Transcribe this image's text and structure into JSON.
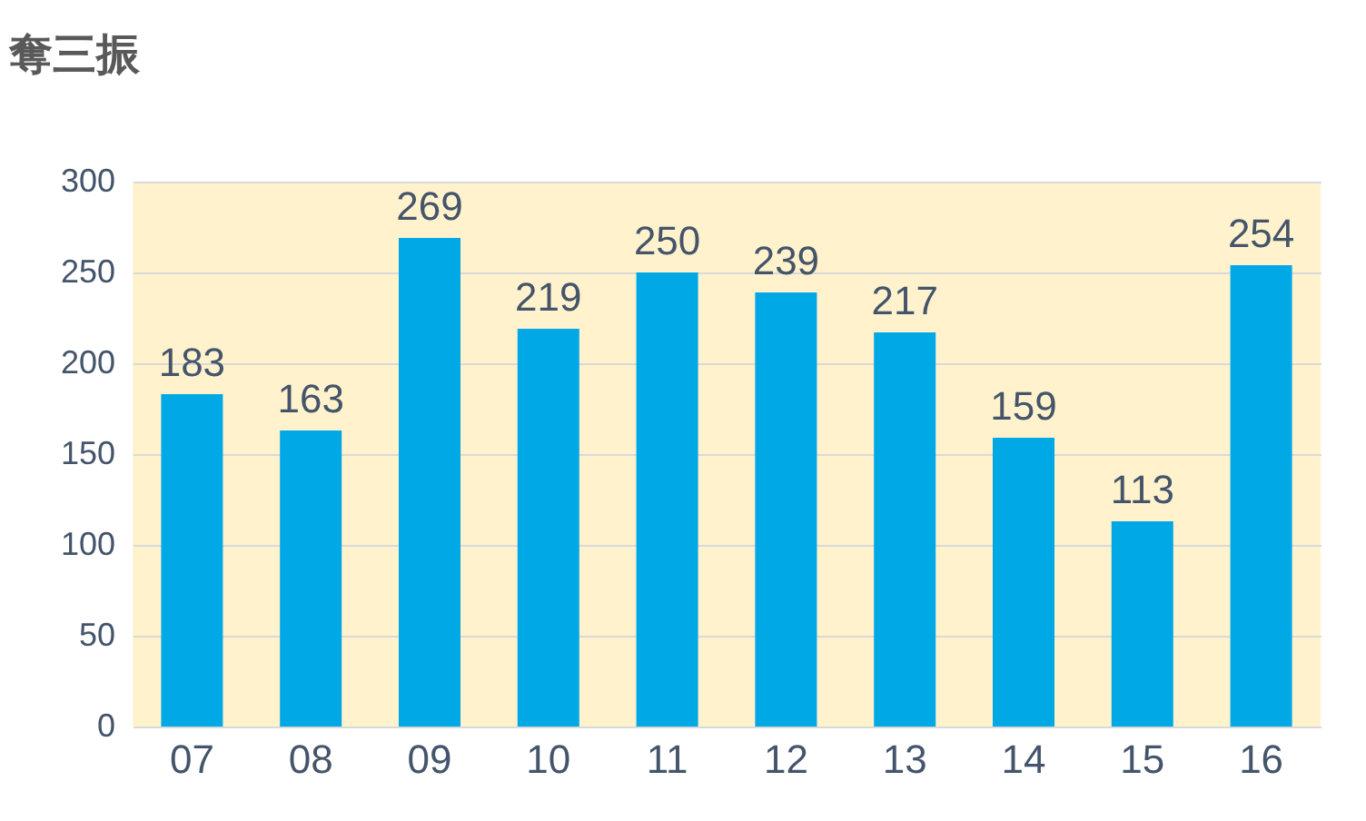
{
  "chart_data": {
    "type": "bar",
    "title": "奪三振",
    "categories": [
      "07",
      "08",
      "09",
      "10",
      "11",
      "12",
      "13",
      "14",
      "15",
      "16"
    ],
    "values": [
      183,
      163,
      269,
      219,
      250,
      239,
      217,
      159,
      113,
      254
    ],
    "color": "#00a9e6",
    "ylim": [
      0,
      300
    ],
    "yticks": [
      0,
      50,
      100,
      150,
      200,
      250,
      300
    ],
    "grid": "y",
    "data_labels": true
  }
}
